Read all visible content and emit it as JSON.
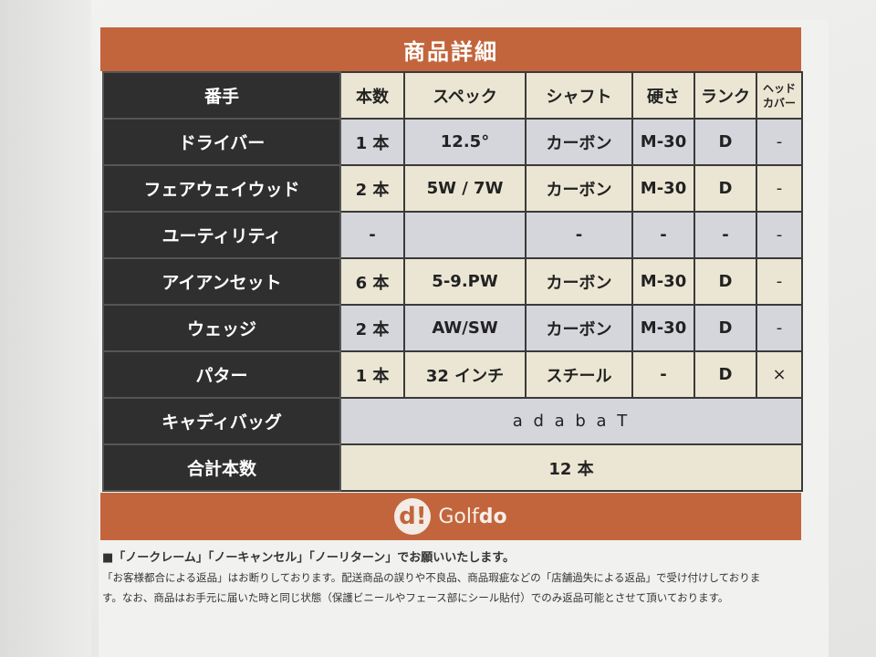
{
  "title": "商品詳細",
  "headers": [
    "番手",
    "本数",
    "スペック",
    "シャフト",
    "硬さ",
    "ランク",
    "ヘッドカバー"
  ],
  "header_cover_lines": [
    "ヘッド",
    "カバー"
  ],
  "rows": [
    {
      "label": "ドライバー",
      "cells": [
        "1 本",
        "12.5°",
        "カーボン",
        "M-30",
        "D",
        "-"
      ]
    },
    {
      "label": "フェアウェイウッド",
      "cells": [
        "2 本",
        "5W / 7W",
        "カーボン",
        "M-30",
        "D",
        "-"
      ]
    },
    {
      "label": "ユーティリティ",
      "cells": [
        "-",
        "",
        "-",
        "-",
        "-",
        "-"
      ]
    },
    {
      "label": "アイアンセット",
      "cells": [
        "6 本",
        "5-9.PW",
        "カーボン",
        "M-30",
        "D",
        "-"
      ]
    },
    {
      "label": "ウェッジ",
      "cells": [
        "2 本",
        "AW/SW",
        "カーボン",
        "M-30",
        "D",
        "-"
      ]
    },
    {
      "label": "パター",
      "cells": [
        "1 本",
        "32 インチ",
        "スチール",
        "-",
        "D",
        "×"
      ]
    }
  ],
  "caddy": {
    "label": "キャディバッグ",
    "value": "a d a b a T"
  },
  "total": {
    "label": "合計本数",
    "value": "12 本"
  },
  "logo": {
    "mark": "d!",
    "text_a": "Golf",
    "text_b": "do"
  },
  "notes": [
    "■「ノークレーム」「ノーキャンセル」「ノーリターン」でお願いいたします。",
    "「お客様都合による返品」はお断りしております。配送商品の誤りや不良品、商品瑕疵などの「店舗過失による返品」で受け付けしておりま",
    "す。なお、商品はお手元に届いた時と同じ状態（保護ビニールやフェース部にシール貼付）でのみ返品可能とさせて頂いております。"
  ]
}
